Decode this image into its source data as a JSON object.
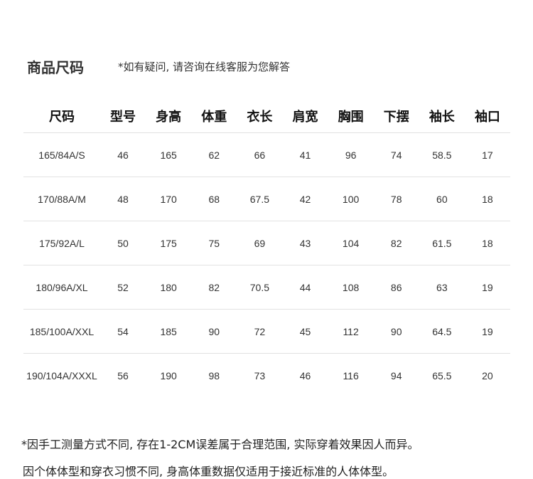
{
  "title": "商品尺码",
  "note": "*如有疑问, 请咨询在线客服为您解答",
  "headers": [
    "尺码",
    "型号",
    "身高",
    "体重",
    "衣长",
    "肩宽",
    "胸围",
    "下摆",
    "袖长",
    "袖口"
  ],
  "rows": [
    [
      "165/84A/S",
      "46",
      "165",
      "62",
      "66",
      "41",
      "96",
      "74",
      "58.5",
      "17"
    ],
    [
      "170/88A/M",
      "48",
      "170",
      "68",
      "67.5",
      "42",
      "100",
      "78",
      "60",
      "18"
    ],
    [
      "175/92A/L",
      "50",
      "175",
      "75",
      "69",
      "43",
      "104",
      "82",
      "61.5",
      "18"
    ],
    [
      "180/96A/XL",
      "52",
      "180",
      "82",
      "70.5",
      "44",
      "108",
      "86",
      "63",
      "19"
    ],
    [
      "185/100A/XXL",
      "54",
      "185",
      "90",
      "72",
      "45",
      "112",
      "90",
      "64.5",
      "19"
    ],
    [
      "190/104A/XXXL",
      "56",
      "190",
      "98",
      "73",
      "46",
      "116",
      "94",
      "65.5",
      "20"
    ]
  ],
  "footnotes": [
    "*因手工测量方式不同, 存在1-2CM误差属于合理范围, 实际穿着效果因人而异。",
    " 因个体体型和穿衣习惯不同, 身高体重数据仅适用于接近标准的人体体型。"
  ]
}
